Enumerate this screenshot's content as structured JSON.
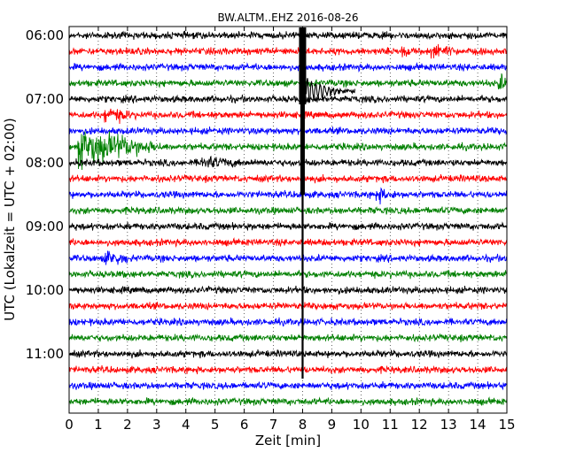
{
  "chart_data": {
    "type": "line",
    "title": "BW.ALTM..EHZ 2016-08-26",
    "xlabel": "Zeit  [min]",
    "ylabel": "UTC (Lokalzeit = UTC + 02:00)",
    "xlim": [
      0,
      15
    ],
    "x_ticks": [
      "0",
      "1",
      "2",
      "3",
      "4",
      "5",
      "6",
      "7",
      "8",
      "9",
      "10",
      "11",
      "12",
      "13",
      "14",
      "15"
    ],
    "y_tick_labels": [
      "06:00",
      "07:00",
      "08:00",
      "09:00",
      "10:00",
      "11:00"
    ],
    "grid": "vertical dotted",
    "trace_colors": [
      "#000000",
      "#ff0000",
      "#0000ff",
      "#008000"
    ],
    "rows_start_time": "06:00",
    "row_interval_min": 15,
    "row_count": 24,
    "event": {
      "time_min": 8.0,
      "rows_affected": [
        0,
        21
      ],
      "peak_rows": [
        1,
        4
      ]
    },
    "wavelets": [
      {
        "row": 5,
        "time_min": 1.2,
        "amp": 1.6,
        "dur": 1.2
      },
      {
        "row": 7,
        "time_min": 0.3,
        "amp": 5.0,
        "dur": 3.0
      },
      {
        "row": 14,
        "time_min": 1.2,
        "amp": 2.0,
        "dur": 1.0
      },
      {
        "row": 1,
        "time_min": 12.4,
        "amp": 1.5,
        "dur": 1.0
      },
      {
        "row": 1,
        "time_min": 11.4,
        "amp": 1.5,
        "dur": 0.3
      },
      {
        "row": 3,
        "time_min": 14.7,
        "amp": 2.0,
        "dur": 0.6
      },
      {
        "row": 10,
        "time_min": 10.5,
        "amp": 1.5,
        "dur": 0.8
      },
      {
        "row": 8,
        "time_min": 4.5,
        "amp": 1.3,
        "dur": 1.5
      }
    ]
  }
}
